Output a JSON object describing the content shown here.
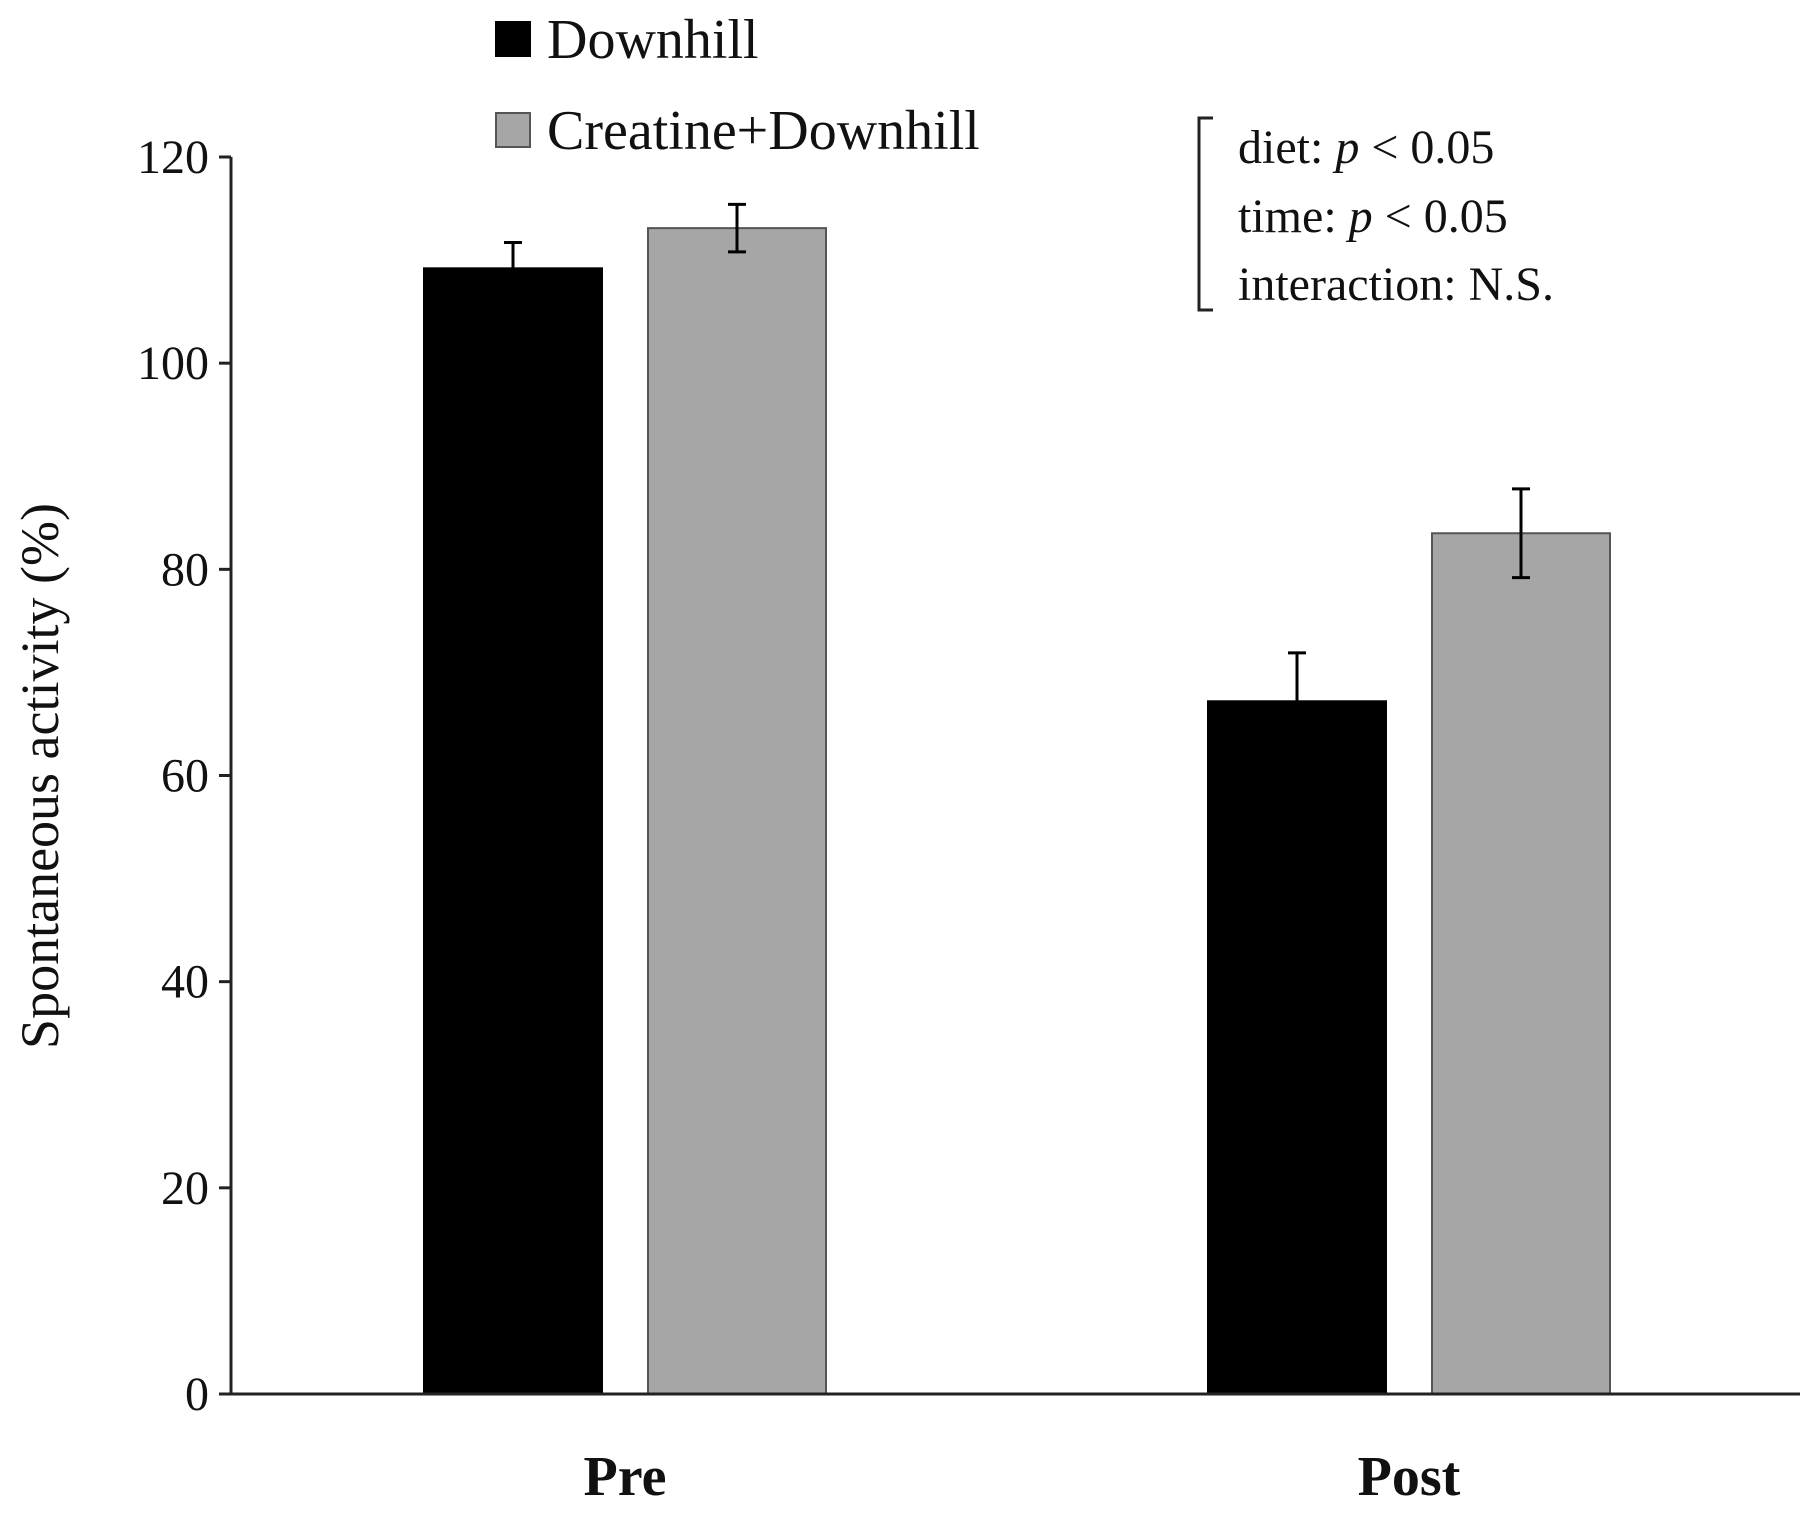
{
  "chart_data": {
    "type": "bar",
    "ylabel": "Spontaneous activity (%)",
    "xlabel": "",
    "ylim": [
      0,
      120
    ],
    "yticks": [
      0,
      20,
      40,
      60,
      80,
      100,
      120
    ],
    "categories": [
      "Pre",
      "Post"
    ],
    "series": [
      {
        "name": "Downhill",
        "color": "#000000",
        "values": [
          109.2,
          67.2
        ],
        "errors": [
          2.5,
          4.7
        ]
      },
      {
        "name": "Creatine+Downhill",
        "color": "#a6a6a6",
        "values": [
          113.1,
          83.5
        ],
        "errors": [
          2.3,
          4.3
        ]
      }
    ],
    "legend_position": "top-left",
    "grid": false,
    "annotation": {
      "lines": [
        {
          "label": "diet: ",
          "p": "p",
          "rest": " < 0.05"
        },
        {
          "label": "time: ",
          "p": "p",
          "rest": " < 0.05"
        },
        {
          "label": "interaction: N.S.",
          "p": "",
          "rest": ""
        }
      ]
    }
  }
}
